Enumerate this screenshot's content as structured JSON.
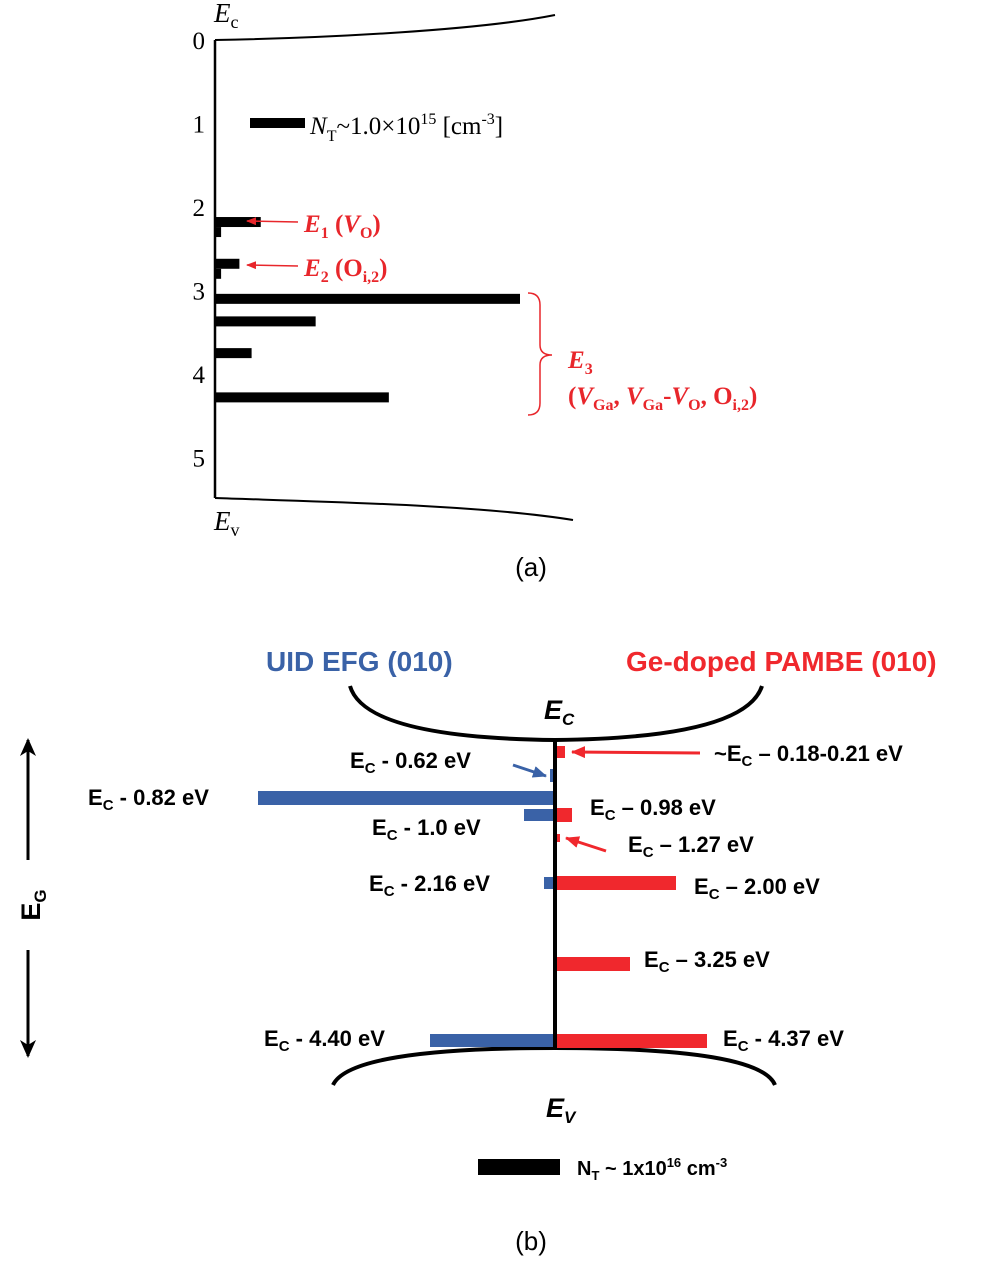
{
  "panel_a": {
    "caption": "(a)",
    "top_band": {
      "sym": "E",
      "sub": "c"
    },
    "bottom_band": {
      "sym": "E",
      "sub": "v"
    },
    "axis_ticks": [
      "0",
      "1",
      "2",
      "3",
      "4",
      "5"
    ],
    "scale": {
      "sym": "N",
      "sub": "T",
      "mid": "~1.0×10",
      "exp": "15",
      "unit_a": " [cm",
      "unit_exp": "-3",
      "unit_b": "]"
    },
    "traps": [
      {
        "id": "E1",
        "sym": "E",
        "sub": "1",
        "open": " (",
        "v": "V",
        "vsub": "O",
        "close": ")"
      },
      {
        "id": "E2",
        "sym": "E",
        "sub": "2",
        "open": " (O",
        "osub": "i,2",
        "close": ")"
      },
      {
        "id": "E3",
        "sym": "E",
        "sub": "3",
        "line2": {
          "p1": "(",
          "v1": "V",
          "v1sub": "Ga",
          "c1": ", ",
          "v2": "V",
          "v2sub": "Ga",
          "dash": "-",
          "v3": "V",
          "v3sub": "O",
          "c2": ", O",
          "osub": "i,2",
          "p2": ")"
        }
      }
    ],
    "bars": [
      {
        "level": 2.18,
        "length": 0.15
      },
      {
        "level": 2.3,
        "length": 0.02
      },
      {
        "level": 2.68,
        "length": 0.08
      },
      {
        "level": 2.8,
        "length": 0.02
      },
      {
        "level": 3.1,
        "length": 1.0
      },
      {
        "level": 3.37,
        "length": 0.33
      },
      {
        "level": 3.75,
        "length": 0.12
      },
      {
        "level": 4.28,
        "length": 0.57
      }
    ],
    "colors": {
      "annotation": "#e8262b",
      "bars": "#000000"
    }
  },
  "panel_b": {
    "caption": "(b)",
    "left_title": "UID EFG (010)",
    "right_title": "Ge-doped PAMBE (010)",
    "ec": {
      "sym": "E",
      "sub": "C"
    },
    "ev": {
      "sym": "E",
      "sub": "V"
    },
    "eg": {
      "sym": "E",
      "sub": "G"
    },
    "left_levels": [
      {
        "sub": "C",
        "text": " - 0.62 eV"
      },
      {
        "sub": "C",
        "text": " - 0.82 eV"
      },
      {
        "sub": "C",
        "text": " - 1.0 eV"
      },
      {
        "sub": "C",
        "text": " - 2.16 eV"
      },
      {
        "sub": "C",
        "text": " - 4.40 eV"
      }
    ],
    "right_levels": [
      {
        "pre": "~E",
        "sub": "C",
        "text": " – 0.18-0.21 eV"
      },
      {
        "pre": "E",
        "sub": "C",
        "text": " – 0.98 eV"
      },
      {
        "pre": "E",
        "sub": "C",
        "text": " – 1.27 eV"
      },
      {
        "pre": "E",
        "sub": "C",
        "text": " – 2.00 eV"
      },
      {
        "pre": "E",
        "sub": "C",
        "text": " – 3.25 eV"
      },
      {
        "pre": "E",
        "sub": "C",
        "text": " - 4.37 eV"
      }
    ],
    "scale": {
      "sym": "N",
      "sub": "T",
      "mid": " ~ 1x10",
      "exp": "16",
      "unit": " cm",
      "unit_exp": "-3"
    },
    "colors": {
      "left": "#3a62a7",
      "right": "#f0282d"
    }
  }
}
